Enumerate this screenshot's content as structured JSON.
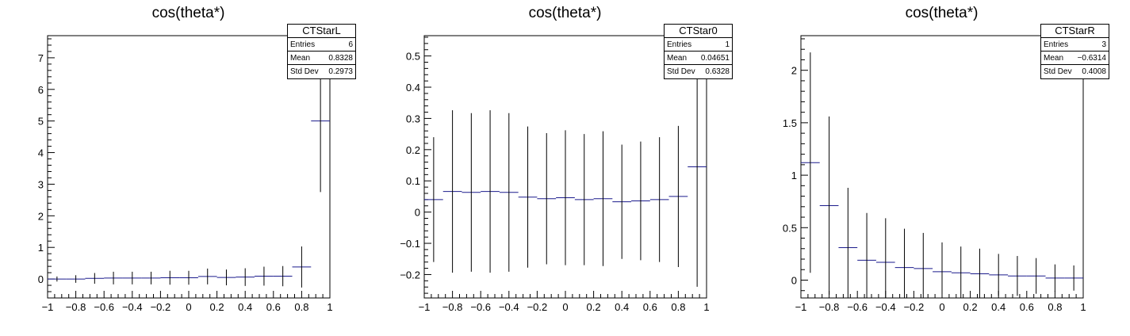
{
  "chart_data": [
    {
      "type": "histogram",
      "title": "cos(theta*)",
      "stats": {
        "name": "CTStarL",
        "entries_label": "Entries",
        "entries": "6",
        "mean_label": "Mean",
        "mean": "0.8328",
        "std_label": "Std Dev",
        "std": "0.2973"
      },
      "xlim": [
        -1,
        1
      ],
      "ylim": [
        -0.6,
        7.7
      ],
      "xticks": [
        -1,
        -0.8,
        -0.6,
        -0.4,
        -0.2,
        0,
        0.2,
        0.4,
        0.6,
        0.8,
        1
      ],
      "xtick_labels": [
        "−1",
        "−0.8",
        "−0.6",
        "−0.4",
        "−0.2",
        "0",
        "0.2",
        "0.4",
        "0.6",
        "0.8",
        "1"
      ],
      "yticks": [
        0,
        1,
        2,
        3,
        4,
        5,
        6,
        7
      ],
      "ytick_labels": [
        "0",
        "1",
        "2",
        "3",
        "4",
        "5",
        "6",
        "7"
      ],
      "yminor": 0.2,
      "bins": 15,
      "values": [
        0.0,
        0.0,
        0.02,
        0.03,
        0.03,
        0.03,
        0.04,
        0.04,
        0.08,
        0.05,
        0.06,
        0.09,
        0.09,
        0.38,
        5.0
      ],
      "errors": [
        0.08,
        0.12,
        0.17,
        0.2,
        0.2,
        0.2,
        0.22,
        0.22,
        0.25,
        0.25,
        0.28,
        0.3,
        0.32,
        0.65,
        2.25
      ]
    },
    {
      "type": "histogram",
      "title": "cos(theta*)",
      "stats": {
        "name": "CTStar0",
        "entries_label": "Entries",
        "entries": "1",
        "mean_label": "Mean",
        "mean": "0.04651",
        "std_label": "Std Dev",
        "std": "0.6328"
      },
      "xlim": [
        -1,
        1
      ],
      "ylim": [
        -0.275,
        0.565
      ],
      "xticks": [
        -1,
        -0.8,
        -0.6,
        -0.4,
        -0.2,
        0,
        0.2,
        0.4,
        0.6,
        0.8,
        1
      ],
      "xtick_labels": [
        "−1",
        "−0.8",
        "−0.6",
        "−0.4",
        "−0.2",
        "0",
        "0.2",
        "0.4",
        "0.6",
        "0.8",
        "1"
      ],
      "yticks": [
        -0.2,
        -0.1,
        0,
        0.1,
        0.2,
        0.3,
        0.4,
        0.5
      ],
      "ytick_labels": [
        "−0.2",
        "−0.1",
        "0",
        "0.1",
        "0.2",
        "0.3",
        "0.4",
        "0.5"
      ],
      "yminor": 0.02,
      "bins": 15,
      "values": [
        0.04,
        0.066,
        0.063,
        0.066,
        0.063,
        0.048,
        0.043,
        0.046,
        0.04,
        0.043,
        0.033,
        0.036,
        0.04,
        0.05,
        0.145
      ],
      "errors": [
        0.2,
        0.26,
        0.254,
        0.26,
        0.254,
        0.226,
        0.21,
        0.216,
        0.21,
        0.216,
        0.183,
        0.19,
        0.2,
        0.226,
        0.384
      ]
    },
    {
      "type": "histogram",
      "title": "cos(theta*)",
      "stats": {
        "name": "CTStarR",
        "entries_label": "Entries",
        "entries": "3",
        "mean_label": "Mean",
        "mean": "−0.6314",
        "std_label": "Std Dev",
        "std": "0.4008"
      },
      "xlim": [
        -1,
        1
      ],
      "ylim": [
        -0.17,
        2.33
      ],
      "xticks": [
        -1,
        -0.8,
        -0.6,
        -0.4,
        -0.2,
        0,
        0.2,
        0.4,
        0.6,
        0.8,
        1
      ],
      "xtick_labels": [
        "−1",
        "−0.8",
        "−0.6",
        "−0.4",
        "−0.2",
        "0",
        "0.2",
        "0.4",
        "0.6",
        "0.8",
        "1"
      ],
      "yticks": [
        0,
        0.5,
        1,
        1.5,
        2
      ],
      "ytick_labels": [
        "0",
        "0.5",
        "1",
        "1.5",
        "2"
      ],
      "yminor": 0.1,
      "bins": 15,
      "values": [
        1.12,
        0.71,
        0.31,
        0.19,
        0.17,
        0.12,
        0.11,
        0.08,
        0.07,
        0.06,
        0.05,
        0.04,
        0.04,
        0.02,
        0.02
      ],
      "errors": [
        1.05,
        0.85,
        0.57,
        0.45,
        0.42,
        0.37,
        0.34,
        0.28,
        0.25,
        0.24,
        0.2,
        0.19,
        0.17,
        0.13,
        0.12
      ]
    }
  ],
  "colors": {
    "errorbar": "#1a1a8c",
    "axis": "#000000"
  }
}
